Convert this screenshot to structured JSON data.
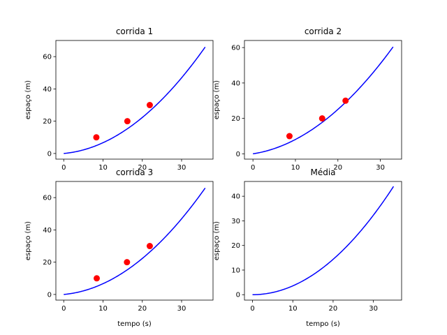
{
  "colors": {
    "line": "#0000ff",
    "points": "#ff0000"
  },
  "chart_data": [
    {
      "type": "line",
      "title": "corrida 1",
      "xlabel": "",
      "ylabel": "espaço (m)",
      "xlim": [
        -2,
        38
      ],
      "ylim": [
        -3.5,
        70
      ],
      "xticks": [
        0,
        10,
        20,
        30
      ],
      "yticks": [
        0,
        20,
        40,
        60
      ],
      "curve": {
        "x_max": 36,
        "a": 0.04478,
        "b": 0.2194,
        "c": 0
      },
      "scatter": {
        "x": [
          8.3,
          16.2,
          21.9
        ],
        "y": [
          10,
          20,
          30
        ]
      }
    },
    {
      "type": "line",
      "title": "corrida 2",
      "xlabel": "",
      "ylabel": "espaço (m)",
      "xlim": [
        -2,
        35
      ],
      "ylim": [
        -3,
        64
      ],
      "xticks": [
        0,
        10,
        20,
        30
      ],
      "yticks": [
        0,
        20,
        40,
        60
      ],
      "curve": {
        "x_max": 33,
        "a": 0.04435,
        "b": 0.3667,
        "c": 0
      },
      "scatter": {
        "x": [
          8.6,
          16.3,
          21.8
        ],
        "y": [
          10,
          20,
          30
        ]
      }
    },
    {
      "type": "line",
      "title": "corrida 3",
      "xlabel": "tempo (s)",
      "ylabel": "espaço (m)",
      "xlim": [
        -2,
        38
      ],
      "ylim": [
        -3.5,
        70
      ],
      "xticks": [
        0,
        10,
        20,
        30
      ],
      "yticks": [
        0,
        20,
        40,
        60
      ],
      "curve": {
        "x_max": 36,
        "a": 0.04478,
        "b": 0.2194,
        "c": 0
      },
      "scatter": {
        "x": [
          8.4,
          16.1,
          21.9
        ],
        "y": [
          10,
          20,
          30
        ]
      }
    },
    {
      "type": "line",
      "title": "Média",
      "xlabel": "tempo (s)",
      "ylabel": "espaço (m)",
      "xlim": [
        -2,
        37
      ],
      "ylim": [
        -2.2,
        46
      ],
      "xticks": [
        0,
        10,
        20,
        30
      ],
      "yticks": [
        0,
        10,
        20,
        30,
        40
      ],
      "curve": {
        "x_max": 35,
        "a": 0.0359,
        "b": 0,
        "c": 0
      },
      "scatter": {
        "x": [],
        "y": []
      }
    }
  ]
}
